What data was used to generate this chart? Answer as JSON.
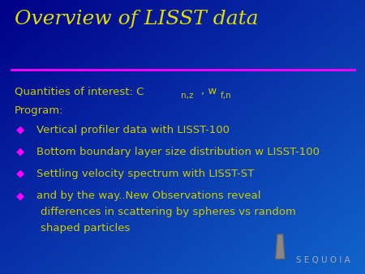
{
  "title": "Overview of LISST data",
  "title_color": "#DDDD00",
  "title_fontsize": 18,
  "bg_color_top": "#0000AA",
  "bg_color_bottom": "#0044CC",
  "line_color": "#FF00FF",
  "text_color": "#CCCC00",
  "bullet_color": "#FF00FF",
  "program_line": "Program:",
  "bullets": [
    "Vertical profiler data with LISST-100",
    "Bottom boundary layer size distribution w LISST-100",
    "Settling velocity spectrum with LISST-ST",
    "and by the way..New Observations reveal\ndifferences in scattering by spheres vs random\nshaped particles"
  ],
  "sequoia_color": "#aaaaaa",
  "sequoia_text": "S E Q U O I A",
  "body_fontsize": 9.5
}
